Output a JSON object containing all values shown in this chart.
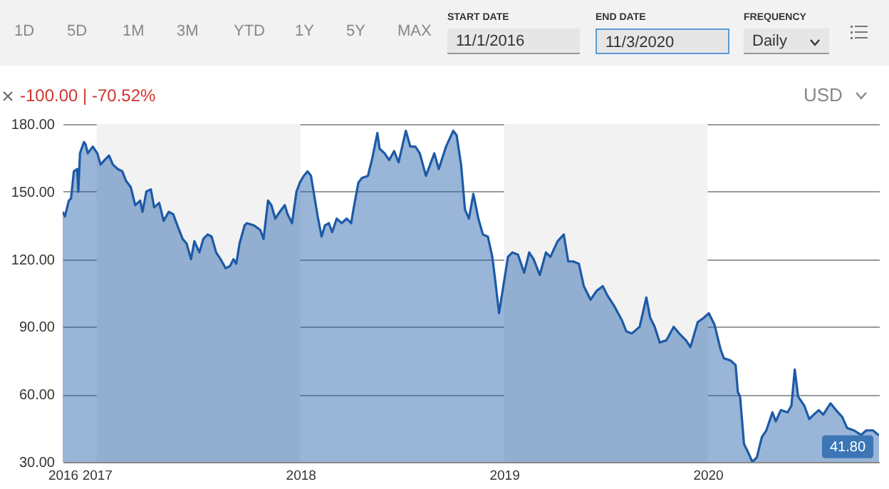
{
  "chart_data": {
    "type": "area",
    "xlim": [
      "2016-11-01",
      "2020-11-03"
    ],
    "ylim": [
      30,
      180
    ],
    "xticks": [
      {
        "value": "2016-11-01",
        "label": "2016"
      },
      {
        "value": "2017-01-01",
        "label": "2017"
      },
      {
        "value": "2018-01-01",
        "label": "2018"
      },
      {
        "value": "2019-01-01",
        "label": "2019"
      },
      {
        "value": "2020-01-01",
        "label": "2020"
      }
    ],
    "yticks": [
      {
        "value": 30,
        "label": "30.00"
      },
      {
        "value": 60,
        "label": "60.00"
      },
      {
        "value": 90,
        "label": "90.00"
      },
      {
        "value": 120,
        "label": "120.00"
      },
      {
        "value": 150,
        "label": "150.00"
      },
      {
        "value": 180,
        "label": "180.00"
      }
    ],
    "grid": "y",
    "bands": [
      {
        "axis": "x",
        "from": "2017-01-01",
        "to": "2018-01-01",
        "color": "#f2f2f2"
      },
      {
        "axis": "x",
        "from": "2019-01-01",
        "to": "2020-01-01",
        "color": "#f2f2f2"
      }
    ],
    "series": [
      {
        "color": "#1c5aa6",
        "x": [
          "2016-11-01",
          "2016-11-05",
          "2016-11-12",
          "2016-11-16",
          "2016-11-21",
          "2016-11-27",
          "2016-11-29",
          "2016-12-02",
          "2016-12-09",
          "2016-12-12",
          "2016-12-16",
          "2016-12-25",
          "2017-01-02",
          "2017-01-08",
          "2017-01-15",
          "2017-01-23",
          "2017-01-30",
          "2017-02-08",
          "2017-02-16",
          "2017-02-22",
          "2017-03-03",
          "2017-03-11",
          "2017-03-20",
          "2017-03-24",
          "2017-03-31",
          "2017-04-08",
          "2017-04-14",
          "2017-04-23",
          "2017-05-01",
          "2017-05-10",
          "2017-05-18",
          "2017-05-27",
          "2017-06-04",
          "2017-06-11",
          "2017-06-19",
          "2017-06-25",
          "2017-07-04",
          "2017-07-11",
          "2017-07-19",
          "2017-07-26",
          "2017-08-03",
          "2017-08-11",
          "2017-08-20",
          "2017-08-28",
          "2017-09-03",
          "2017-09-08",
          "2017-09-14",
          "2017-09-23",
          "2017-09-27",
          "2017-10-10",
          "2017-10-21",
          "2017-10-27",
          "2017-11-04",
          "2017-11-10",
          "2017-11-17",
          "2017-11-25",
          "2017-12-04",
          "2017-12-09",
          "2017-12-17",
          "2017-12-25",
          "2017-12-31",
          "2018-01-07",
          "2018-01-14",
          "2018-01-20",
          "2018-01-24",
          "2018-02-01",
          "2018-02-08",
          "2018-02-14",
          "2018-02-21",
          "2018-02-27",
          "2018-03-07",
          "2018-03-16",
          "2018-03-25",
          "2018-04-02",
          "2018-04-06",
          "2018-04-15",
          "2018-04-21",
          "2018-05-02",
          "2018-05-10",
          "2018-05-19",
          "2018-05-23",
          "2018-06-01",
          "2018-06-09",
          "2018-06-18",
          "2018-06-26",
          "2018-07-09",
          "2018-07-17",
          "2018-07-26",
          "2018-08-03",
          "2018-08-14",
          "2018-08-29",
          "2018-09-06",
          "2018-09-19",
          "2018-10-02",
          "2018-10-08",
          "2018-10-16",
          "2018-10-23",
          "2018-10-30",
          "2018-11-07",
          "2018-11-16",
          "2018-11-24",
          "2018-12-03",
          "2018-12-11",
          "2018-12-17",
          "2018-12-23",
          "2018-12-30",
          "2019-01-08",
          "2019-01-16",
          "2019-01-26",
          "2019-02-06",
          "2019-02-15",
          "2019-02-23",
          "2019-03-06",
          "2019-03-17",
          "2019-03-25",
          "2019-04-07",
          "2019-04-18",
          "2019-04-26",
          "2019-05-05",
          "2019-05-15",
          "2019-05-24",
          "2019-06-05",
          "2019-06-16",
          "2019-06-27",
          "2019-07-05",
          "2019-07-18",
          "2019-07-31",
          "2019-08-08",
          "2019-08-18",
          "2019-09-01",
          "2019-09-13",
          "2019-09-20",
          "2019-09-28",
          "2019-10-07",
          "2019-10-19",
          "2019-11-01",
          "2019-11-11",
          "2019-11-23",
          "2019-12-01",
          "2019-12-14",
          "2019-12-25",
          "2020-01-03",
          "2020-01-13",
          "2020-01-24",
          "2020-01-30",
          "2020-02-11",
          "2020-02-20",
          "2020-02-24",
          "2020-02-28",
          "2020-03-06",
          "2020-03-12",
          "2020-03-21",
          "2020-03-29",
          "2020-04-07",
          "2020-04-15",
          "2020-04-26",
          "2020-05-02",
          "2020-05-11",
          "2020-05-23",
          "2020-05-30",
          "2020-06-05",
          "2020-06-11",
          "2020-06-22",
          "2020-07-01",
          "2020-07-09",
          "2020-07-18",
          "2020-07-26",
          "2020-08-08",
          "2020-08-18",
          "2020-08-29",
          "2020-09-07",
          "2020-09-19",
          "2020-10-02",
          "2020-10-11",
          "2020-10-23",
          "2020-11-03"
        ],
        "values": [
          141,
          139,
          146,
          147,
          159,
          160,
          150,
          167,
          172,
          171,
          167,
          170,
          167,
          162,
          164,
          166,
          162,
          160,
          159,
          155,
          152,
          144,
          146,
          141,
          150,
          151,
          143,
          145,
          137,
          141,
          140,
          134,
          129,
          127,
          120,
          128,
          123,
          129,
          131,
          130,
          123,
          120,
          116,
          117,
          120,
          118,
          127,
          135,
          136,
          135,
          133,
          129,
          146,
          144,
          138,
          141,
          144,
          140,
          136,
          150,
          154,
          157,
          159,
          157,
          151,
          139,
          130,
          135,
          136,
          132,
          138,
          136,
          138,
          136,
          142,
          154,
          156,
          157,
          165,
          176,
          169,
          167,
          164,
          168,
          163,
          177,
          170,
          170,
          167,
          157,
          167,
          160,
          170,
          177,
          175,
          162,
          142,
          138,
          149,
          138,
          131,
          130,
          121,
          109,
          96,
          107,
          121,
          123,
          122,
          114,
          123,
          120,
          113,
          123,
          121,
          128,
          131,
          119,
          119,
          118,
          108,
          102,
          106,
          108,
          104,
          99,
          93,
          88,
          87,
          90,
          103,
          94,
          90,
          83,
          84,
          90,
          87,
          84,
          81,
          92,
          94,
          96,
          91,
          80,
          76,
          75,
          73,
          61,
          59,
          38,
          35,
          30,
          32,
          41,
          44,
          52,
          48,
          53,
          52,
          55,
          71,
          59,
          55,
          49,
          51,
          53,
          51,
          56,
          53,
          50,
          45,
          44,
          42,
          44,
          44,
          41.8
        ]
      }
    ],
    "annotations": [
      "1D",
      "5D",
      "1M",
      "3M",
      "YTD",
      "1Y",
      "5Y",
      "MAX",
      "START DATE",
      "11/1/2016",
      "END DATE",
      "11/3/2020",
      "FREQUENCY",
      "Daily",
      "-100.00 | -70.52%",
      "USD",
      {
        "text": "41.80",
        "x": "2020-11-03",
        "y": 41.8
      }
    ]
  }
}
